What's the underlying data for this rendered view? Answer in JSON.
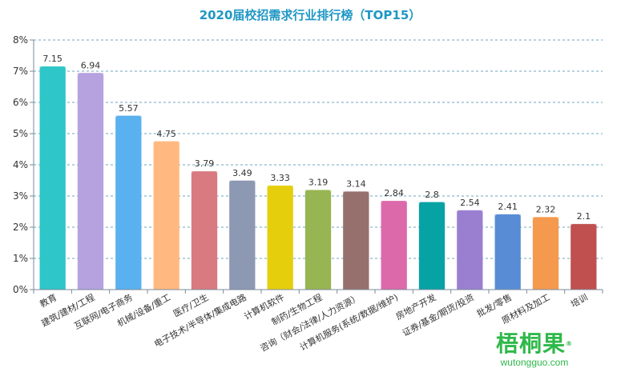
{
  "colors": {
    "title": "#1f97c4",
    "grid": "#4a8fb0",
    "axis": "#7a8a99",
    "logo": "#2fb84a"
  },
  "watermark": {
    "brand": "梧桐果",
    "registered_mark": "®",
    "url": "wutongguo.com"
  },
  "chart_data": {
    "type": "bar",
    "title": "2020届校招需求行业排行榜（TOP15）",
    "xlabel": "",
    "ylabel": "",
    "ylim": [
      0,
      8
    ],
    "yticks": [
      "0%",
      "1%",
      "2%",
      "3%",
      "4%",
      "5%",
      "6%",
      "7%",
      "8%"
    ],
    "grid": true,
    "legend": "none",
    "categories": [
      "教育",
      "建筑/建材/工程",
      "互联网/电子商务",
      "机械/设备/重工",
      "医疗/卫生",
      "电子技术/半导体/集成电路",
      "计算机软件",
      "制药/生物工程",
      "咨询（财会/法律/人力资源）",
      "计算机服务(系统/数据/维护)",
      "房地产开发",
      "证券/基金/期货/投资",
      "批发/零售",
      "原材料及加工",
      "培训"
    ],
    "values": [
      7.15,
      6.94,
      5.57,
      4.75,
      3.79,
      3.49,
      3.33,
      3.19,
      3.14,
      2.84,
      2.8,
      2.54,
      2.41,
      2.32,
      2.1
    ],
    "value_labels": [
      "7.15",
      "6.94",
      "5.57",
      "4.75",
      "3.79",
      "3.49",
      "3.33",
      "3.19",
      "3.14",
      "2.84",
      "2.8",
      "2.54",
      "2.41",
      "2.32",
      "2.1"
    ],
    "bar_colors": [
      "#2ec6c8",
      "#b6a2de",
      "#5ab1ef",
      "#ffb980",
      "#d87a80",
      "#8d98b3",
      "#e5cf0d",
      "#97b552",
      "#95706d",
      "#dc69aa",
      "#07a2a4",
      "#9a7fd1",
      "#588dd5",
      "#f5994e",
      "#c05050"
    ]
  }
}
